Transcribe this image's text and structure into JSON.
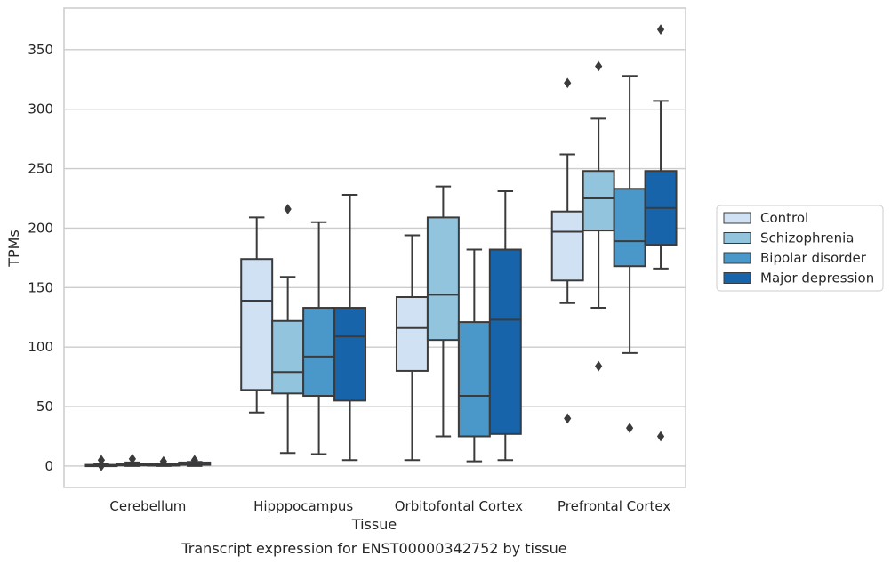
{
  "caption": "Transcript expression for ENST00000342752 by tissue",
  "colors": {
    "Control": "#cfe1f2",
    "Schizophrenia": "#93c4de",
    "Bipolar disorder": "#4a98c9",
    "Major depression": "#1764ab",
    "box_edge": "#3b3b3b",
    "grid": "#cccccc",
    "frame": "#cccccc"
  },
  "chart_data": {
    "type": "box",
    "title": "",
    "xlabel": "Tissue",
    "ylabel": "TPMs",
    "ylim": [
      -18,
      385
    ],
    "yticks": [
      0,
      50,
      100,
      150,
      200,
      250,
      300,
      350
    ],
    "grid": "horizontal",
    "legend_position": "right",
    "categories": [
      "Cerebellum",
      "Hipppocampus",
      "Orbitofontal Cortex",
      "Prefrontal Cortex"
    ],
    "series": [
      {
        "name": "Control",
        "boxes": [
          {
            "min": 0,
            "q1": 0,
            "median": 0.5,
            "q3": 1,
            "max": 2,
            "outliers": [
              5,
              0
            ]
          },
          {
            "min": 45,
            "q1": 64,
            "median": 139,
            "q3": 174,
            "max": 209,
            "outliers": []
          },
          {
            "min": 5,
            "q1": 80,
            "median": 116,
            "q3": 142,
            "max": 194,
            "outliers": []
          },
          {
            "min": 137,
            "q1": 156,
            "median": 197,
            "q3": 214,
            "max": 262,
            "outliers": [
              322,
              40
            ]
          }
        ]
      },
      {
        "name": "Schizophrenia",
        "boxes": [
          {
            "min": 0,
            "q1": 0.5,
            "median": 1,
            "q3": 2,
            "max": 3,
            "outliers": [
              6
            ]
          },
          {
            "min": 11,
            "q1": 61,
            "median": 79,
            "q3": 122,
            "max": 159,
            "outliers": [
              216
            ]
          },
          {
            "min": 25,
            "q1": 106,
            "median": 144,
            "q3": 209,
            "max": 235,
            "outliers": []
          },
          {
            "min": 133,
            "q1": 198,
            "median": 225,
            "q3": 248,
            "max": 292,
            "outliers": [
              336,
              84
            ]
          }
        ]
      },
      {
        "name": "Bipolar disorder",
        "boxes": [
          {
            "min": 0,
            "q1": 0.3,
            "median": 0.8,
            "q3": 1.5,
            "max": 2,
            "outliers": [
              4
            ]
          },
          {
            "min": 10,
            "q1": 59,
            "median": 92,
            "q3": 133,
            "max": 205,
            "outliers": []
          },
          {
            "min": 4,
            "q1": 25,
            "median": 59,
            "q3": 121,
            "max": 182,
            "outliers": []
          },
          {
            "min": 95,
            "q1": 168,
            "median": 189,
            "q3": 233,
            "max": 328,
            "outliers": [
              32
            ]
          }
        ]
      },
      {
        "name": "Major depression",
        "boxes": [
          {
            "min": 0,
            "q1": 1,
            "median": 1.5,
            "q3": 3,
            "max": 3.5,
            "outliers": [
              5
            ]
          },
          {
            "min": 5,
            "q1": 55,
            "median": 109,
            "q3": 133,
            "max": 228,
            "outliers": []
          },
          {
            "min": 5,
            "q1": 27,
            "median": 123,
            "q3": 182,
            "max": 231,
            "outliers": []
          },
          {
            "min": 166,
            "q1": 186,
            "median": 217,
            "q3": 248,
            "max": 307,
            "outliers": [
              367,
              25
            ]
          }
        ]
      }
    ]
  }
}
